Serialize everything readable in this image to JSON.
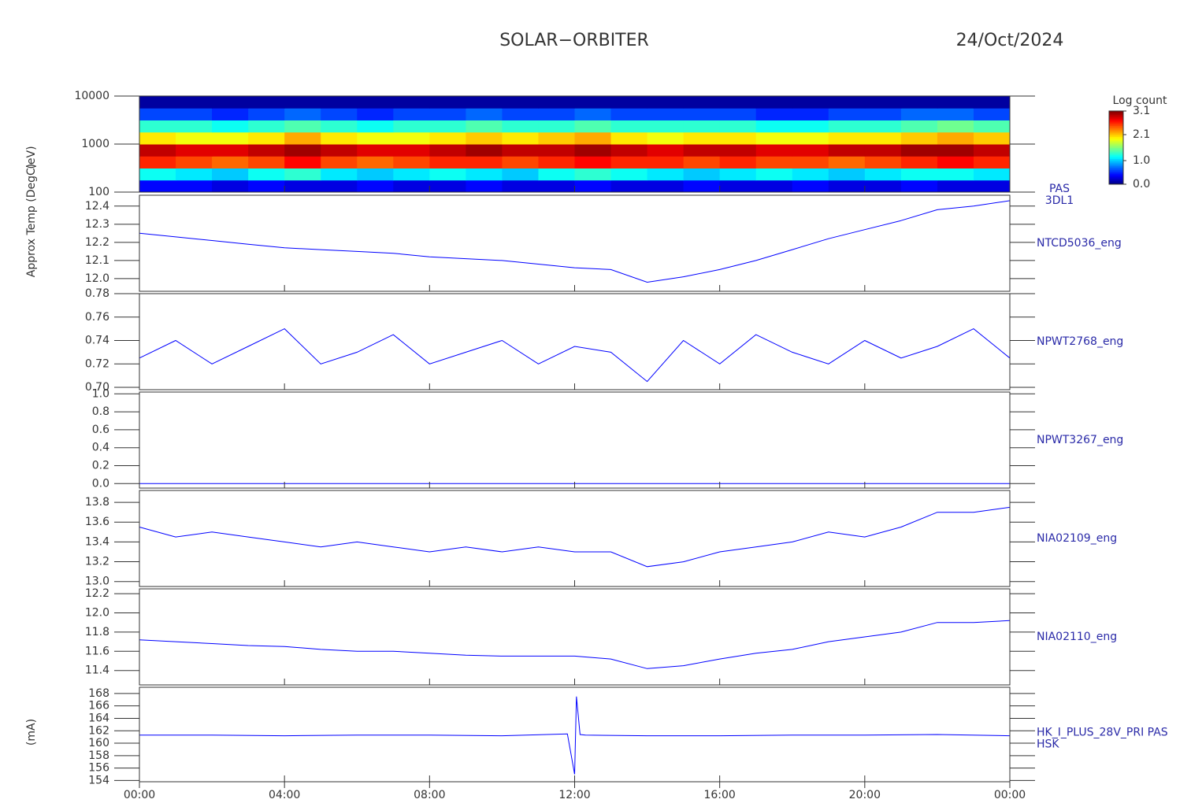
{
  "header": {
    "title": "SOLAR−ORBITER",
    "date": "24/Oct/2024"
  },
  "ylabels": [
    "(eV)",
    "Approx Temp (DegC)",
    "(mA)"
  ],
  "chart_data": [
    {
      "type": "heatmap",
      "label": [
        "PAS",
        "3DL1"
      ],
      "xlim": [
        0,
        24
      ],
      "log_y": true,
      "ylim": [
        100,
        10000
      ],
      "yticks": [
        100,
        1000,
        10000
      ],
      "x": [
        0,
        1,
        2,
        3,
        4,
        5,
        6,
        7,
        8,
        9,
        10,
        11,
        12,
        13,
        14,
        15,
        16,
        17,
        18,
        19,
        20,
        21,
        22,
        23,
        24
      ],
      "ybins": [
        100,
        178,
        316,
        562,
        1000,
        1778,
        3162,
        5623,
        10000
      ],
      "colorbar_title": "Log count",
      "clim": [
        0,
        3.1
      ],
      "cticks": [
        {
          "value": 0,
          "label": "0.0"
        },
        {
          "value": 1,
          "label": "1.0"
        },
        {
          "value": 2.1,
          "label": "2.1"
        },
        {
          "value": 3.1,
          "label": "3.1"
        }
      ],
      "z": [
        [
          0.4,
          0.4,
          0.3,
          0.4,
          0.3,
          0.3,
          0.4,
          0.3,
          0.3,
          0.4,
          0.3,
          0.3,
          0.4,
          0.3,
          0.3,
          0.4,
          0.3,
          0.3,
          0.4,
          0.3,
          0.3,
          0.4,
          0.3,
          0.3
        ],
        [
          1.2,
          1.1,
          1.0,
          1.2,
          1.3,
          1.1,
          1.0,
          1.1,
          1.2,
          1.1,
          1.0,
          1.2,
          1.3,
          1.2,
          1.1,
          1.0,
          1.1,
          1.2,
          1.1,
          1.0,
          1.1,
          1.2,
          1.2,
          1.1
        ],
        [
          2.6,
          2.5,
          2.4,
          2.5,
          2.7,
          2.5,
          2.4,
          2.5,
          2.6,
          2.6,
          2.5,
          2.6,
          2.7,
          2.6,
          2.6,
          2.5,
          2.6,
          2.5,
          2.5,
          2.4,
          2.5,
          2.6,
          2.7,
          2.6
        ],
        [
          2.9,
          2.8,
          2.8,
          2.9,
          3.0,
          2.9,
          2.8,
          2.8,
          2.9,
          3.0,
          2.9,
          2.9,
          3.0,
          2.9,
          2.8,
          2.9,
          2.9,
          2.8,
          2.8,
          2.9,
          2.9,
          3.0,
          3.0,
          2.9
        ],
        [
          2.0,
          1.9,
          1.9,
          2.0,
          2.2,
          2.0,
          1.9,
          1.9,
          2.0,
          2.1,
          2.0,
          2.1,
          2.2,
          2.0,
          1.9,
          2.0,
          2.0,
          1.9,
          1.9,
          2.0,
          2.0,
          2.1,
          2.2,
          2.1
        ],
        [
          1.3,
          1.3,
          1.2,
          1.3,
          1.4,
          1.3,
          1.2,
          1.3,
          1.3,
          1.4,
          1.3,
          1.3,
          1.4,
          1.3,
          1.3,
          1.3,
          1.3,
          1.2,
          1.2,
          1.3,
          1.3,
          1.4,
          1.5,
          1.4
        ],
        [
          0.6,
          0.6,
          0.5,
          0.6,
          0.7,
          0.6,
          0.5,
          0.6,
          0.6,
          0.7,
          0.6,
          0.6,
          0.7,
          0.6,
          0.6,
          0.6,
          0.6,
          0.5,
          0.5,
          0.6,
          0.6,
          0.7,
          0.7,
          0.6
        ],
        [
          0.1,
          0.1,
          0.1,
          0.1,
          0.1,
          0.1,
          0.1,
          0.1,
          0.1,
          0.1,
          0.1,
          0.1,
          0.1,
          0.1,
          0.1,
          0.1,
          0.1,
          0.1,
          0.1,
          0.1,
          0.1,
          0.1,
          0.1,
          0.1
        ]
      ]
    },
    {
      "type": "line",
      "label": [
        "NTCD5036_eng"
      ],
      "color": "#0000ff",
      "xlim": [
        0,
        24
      ],
      "ylim": [
        11.93,
        12.46
      ],
      "yticks": [
        {
          "value": 12,
          "label": "12.0"
        },
        12.1,
        12.2,
        12.3,
        12.4
      ],
      "x": [
        0,
        1,
        2,
        3,
        4,
        5,
        6,
        7,
        8,
        9,
        10,
        11,
        12,
        13,
        14,
        15,
        16,
        17,
        18,
        19,
        20,
        21,
        22,
        23,
        24
      ],
      "values": [
        12.25,
        12.23,
        12.21,
        12.19,
        12.17,
        12.16,
        12.15,
        12.14,
        12.12,
        12.11,
        12.1,
        12.08,
        12.06,
        12.05,
        11.98,
        12.01,
        12.05,
        12.1,
        12.16,
        12.22,
        12.27,
        12.32,
        12.38,
        12.4,
        12.43
      ]
    },
    {
      "type": "line",
      "label": [
        "NPWT2768_eng"
      ],
      "color": "#0000ff",
      "xlim": [
        0,
        24
      ],
      "ylim": [
        0.698,
        0.78
      ],
      "yticks": [
        {
          "value": 0.7,
          "label": "0.70"
        },
        0.72,
        0.74,
        0.76,
        0.78
      ],
      "x": [
        0,
        1,
        2,
        3,
        4,
        5,
        6,
        7,
        8,
        9,
        10,
        11,
        12,
        13,
        14,
        15,
        16,
        17,
        18,
        19,
        20,
        21,
        22,
        23,
        24
      ],
      "values": [
        0.725,
        0.74,
        0.72,
        0.735,
        0.75,
        0.72,
        0.73,
        0.745,
        0.72,
        0.73,
        0.74,
        0.72,
        0.735,
        0.73,
        0.705,
        0.74,
        0.72,
        0.745,
        0.73,
        0.72,
        0.74,
        0.725,
        0.735,
        0.75,
        0.725
      ]
    },
    {
      "type": "line",
      "label": [
        "NPWT3267_eng"
      ],
      "color": "#0000ff",
      "xlim": [
        0,
        24
      ],
      "ylim": [
        -0.05,
        1.02
      ],
      "yticks": [
        {
          "value": 0,
          "label": "0.0"
        },
        0.2,
        0.4,
        0.6,
        0.8,
        {
          "value": 1,
          "label": "1.0"
        }
      ],
      "x": [
        0,
        1,
        2,
        3,
        4,
        5,
        6,
        7,
        8,
        9,
        10,
        11,
        12,
        13,
        14,
        15,
        16,
        17,
        18,
        19,
        20,
        21,
        22,
        23,
        24
      ],
      "values": [
        0,
        0,
        0,
        0,
        0,
        0,
        0,
        0,
        0,
        0,
        0,
        0,
        0,
        0,
        0,
        0,
        0,
        0,
        0,
        0,
        0,
        0,
        0,
        0,
        0
      ]
    },
    {
      "type": "line",
      "label": [
        "NIA02109_eng"
      ],
      "color": "#0000ff",
      "xlim": [
        0,
        24
      ],
      "ylim": [
        12.95,
        13.92
      ],
      "yticks": [
        {
          "value": 13,
          "label": "13.0"
        },
        13.2,
        13.4,
        13.6,
        13.8
      ],
      "x": [
        0,
        1,
        2,
        3,
        4,
        5,
        6,
        7,
        8,
        9,
        10,
        11,
        12,
        13,
        14,
        15,
        16,
        17,
        18,
        19,
        20,
        21,
        22,
        23,
        24
      ],
      "values": [
        13.55,
        13.45,
        13.5,
        13.45,
        13.4,
        13.35,
        13.4,
        13.35,
        13.3,
        13.35,
        13.3,
        13.35,
        13.3,
        13.3,
        13.15,
        13.2,
        13.3,
        13.35,
        13.4,
        13.5,
        13.45,
        13.55,
        13.7,
        13.7,
        13.75
      ]
    },
    {
      "type": "line",
      "label": [
        "NIA02110_eng"
      ],
      "color": "#0000ff",
      "xlim": [
        0,
        24
      ],
      "ylim": [
        11.25,
        12.25
      ],
      "yticks": [
        11.4,
        11.6,
        11.8,
        {
          "value": 12,
          "label": "12.0"
        },
        12.2
      ],
      "x": [
        0,
        1,
        2,
        3,
        4,
        5,
        6,
        7,
        8,
        9,
        10,
        11,
        12,
        13,
        14,
        15,
        16,
        17,
        18,
        19,
        20,
        21,
        22,
        23,
        24
      ],
      "values": [
        11.72,
        11.7,
        11.68,
        11.66,
        11.65,
        11.62,
        11.6,
        11.6,
        11.58,
        11.56,
        11.55,
        11.55,
        11.55,
        11.52,
        11.42,
        11.45,
        11.52,
        11.58,
        11.62,
        11.7,
        11.75,
        11.8,
        11.9,
        11.9,
        11.92
      ]
    },
    {
      "type": "line",
      "label": [
        "HK_I_PLUS_28V_PRI PAS",
        "HSK"
      ],
      "color": "#0000ff",
      "xlim": [
        0,
        24
      ],
      "ylim": [
        153.8,
        169
      ],
      "yticks": [
        154,
        156,
        158,
        160,
        162,
        164,
        166,
        168
      ],
      "xticks": [
        {
          "value": 0,
          "label": "00:00"
        },
        {
          "value": 4,
          "label": "04:00"
        },
        {
          "value": 8,
          "label": "08:00"
        },
        {
          "value": 12,
          "label": "12:00"
        },
        {
          "value": 16,
          "label": "16:00"
        },
        {
          "value": 20,
          "label": "20:00"
        },
        {
          "value": 24,
          "label": "00:00"
        }
      ],
      "x": [
        0,
        2,
        4,
        6,
        8,
        10,
        11.8,
        12.0,
        12.05,
        12.15,
        12.3,
        14,
        16,
        18,
        20,
        22,
        24
      ],
      "values": [
        161.3,
        161.3,
        161.2,
        161.3,
        161.3,
        161.2,
        161.5,
        155,
        167.5,
        161.4,
        161.3,
        161.2,
        161.2,
        161.3,
        161.3,
        161.4,
        161.2
      ]
    }
  ]
}
